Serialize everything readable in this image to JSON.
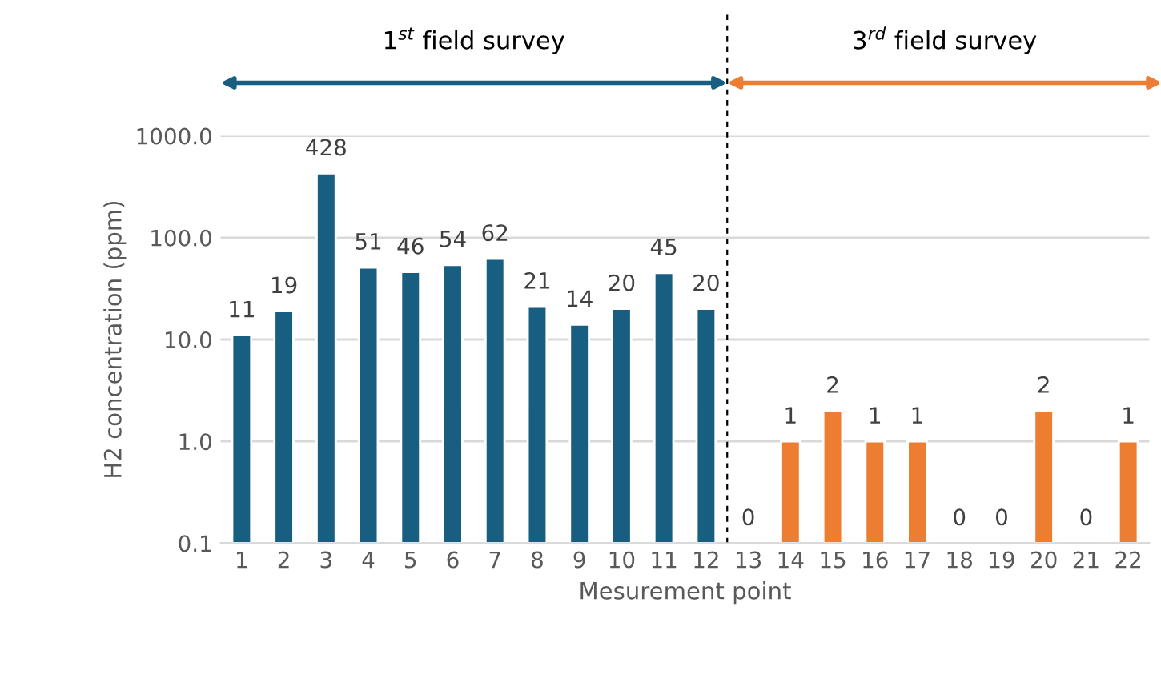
{
  "chart_data": {
    "type": "bar",
    "xlabel": "Mesurement point",
    "ylabel": "H2 concentration (ppm)",
    "categories": [
      "1",
      "2",
      "3",
      "4",
      "5",
      "6",
      "7",
      "8",
      "9",
      "10",
      "11",
      "12",
      "13",
      "14",
      "15",
      "16",
      "17",
      "18",
      "19",
      "20",
      "21",
      "22"
    ],
    "series": [
      {
        "color": "#175e80",
        "values": [
          11,
          19,
          428,
          51,
          46,
          54,
          62,
          21,
          14,
          20,
          45,
          20,
          null,
          null,
          null,
          null,
          null,
          null,
          null,
          null,
          null,
          null
        ],
        "value_labels": [
          "11",
          "19",
          "428",
          "51",
          "46",
          "54",
          "62",
          "21",
          "14",
          "20",
          "45",
          "20",
          null,
          null,
          null,
          null,
          null,
          null,
          null,
          null,
          null,
          null
        ]
      },
      {
        "color": "#ed7d31",
        "values": [
          null,
          null,
          null,
          null,
          null,
          null,
          null,
          null,
          null,
          null,
          null,
          null,
          null,
          1,
          2,
          1,
          1,
          null,
          null,
          2,
          null,
          1
        ],
        "value_labels": [
          null,
          null,
          null,
          null,
          null,
          null,
          null,
          null,
          null,
          null,
          null,
          null,
          "0",
          "1",
          "2",
          "1",
          "1",
          "0",
          "0",
          "2",
          "0",
          "1"
        ]
      }
    ],
    "log": "y",
    "ylim": [
      0.1,
      1000
    ],
    "yticks": [
      {
        "value": 0.1,
        "label": "0.1"
      },
      {
        "value": 1,
        "label": "1.0"
      },
      {
        "value": 10,
        "label": "10.0"
      },
      {
        "value": 100,
        "label": "100.0"
      },
      {
        "value": 1000,
        "label": "1000.0"
      }
    ],
    "grid": "y",
    "legend": false,
    "ref_lines": [
      {
        "axis": "x",
        "value": "13",
        "line_style": "dashed",
        "color": "#000000"
      }
    ],
    "annotations": [
      "1$^{st}$ field survey",
      "3$^{rd}$ field survey"
    ]
  }
}
